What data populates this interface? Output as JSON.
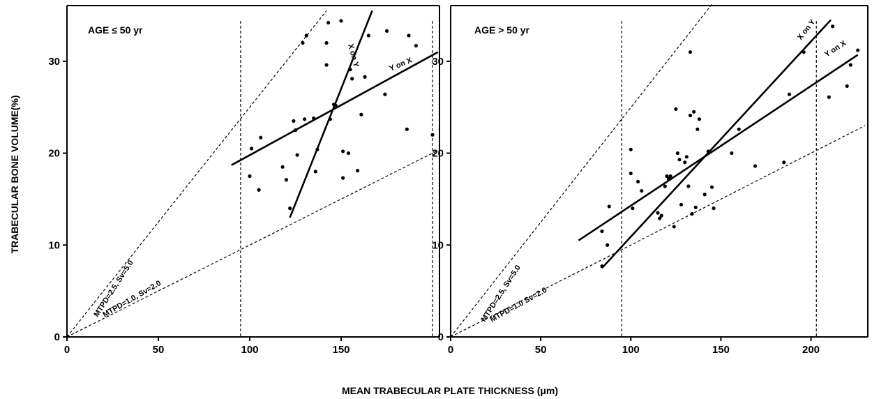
{
  "chart_data": {
    "type": "scatter",
    "xlabel": "MEAN TRABECULAR PLATE THICKNESS (μm)",
    "ylabel": "TRABECULAR BONE VOLUME(%)",
    "panels": [
      {
        "title": "AGE ≤ 50 yr",
        "xlim": [
          0,
          200
        ],
        "ylim": [
          0,
          35
        ],
        "xticks": [
          0,
          50,
          100,
          150
        ],
        "xtick_labels": [
          "0",
          "50",
          "100",
          "150"
        ],
        "yticks": [
          0,
          10,
          20,
          30
        ],
        "ytick_labels": [
          "0",
          "10",
          "20",
          "30"
        ],
        "points": [
          [
            100,
            17.5
          ],
          [
            101,
            20.5
          ],
          [
            105,
            16
          ],
          [
            106,
            21.7
          ],
          [
            118,
            18.5
          ],
          [
            120,
            17.1
          ],
          [
            122,
            14
          ],
          [
            124,
            23.5
          ],
          [
            125,
            22.5
          ],
          [
            126,
            19.8
          ],
          [
            129,
            32
          ],
          [
            130,
            23.7
          ],
          [
            131,
            32.8
          ],
          [
            135,
            23.8
          ],
          [
            136,
            18
          ],
          [
            137,
            20.4
          ],
          [
            142,
            29.6
          ],
          [
            142,
            32
          ],
          [
            143,
            34.2
          ],
          [
            144,
            23.7
          ],
          [
            146,
            25.3
          ],
          [
            147,
            25.2
          ],
          [
            150,
            34.4
          ],
          [
            151,
            20.2
          ],
          [
            151,
            17.3
          ],
          [
            154,
            20
          ],
          [
            155,
            29.1
          ],
          [
            156,
            28.1
          ],
          [
            159,
            18.1
          ],
          [
            161,
            24.2
          ],
          [
            163,
            28.3
          ],
          [
            165,
            32.8
          ],
          [
            174,
            26.4
          ],
          [
            175,
            33.3
          ],
          [
            186,
            22.6
          ],
          [
            187,
            32.8
          ],
          [
            191,
            31.7
          ],
          [
            200,
            22
          ]
        ],
        "regression_lines": [
          {
            "label": "Y on X",
            "from": [
              90,
              18.7
            ],
            "to": [
              203,
              31
            ]
          },
          {
            "label": "X on Y",
            "from": [
              122,
              13
            ],
            "to": [
              167,
              35.5
            ]
          }
        ],
        "reference_lines": [
          {
            "label": "MTPD=2.5, Sv=5.0",
            "from": [
              0,
              0
            ],
            "to": [
              142,
              35.5
            ]
          },
          {
            "label": "MTPD=1.0, Sv=2.0",
            "from": [
              0,
              0
            ],
            "to": [
              203,
              20.3
            ]
          }
        ],
        "vertical_lines_x": [
          95,
          200
        ]
      },
      {
        "title": "AGE > 50 yr",
        "xlim": [
          0,
          230
        ],
        "ylim": [
          0,
          35
        ],
        "xticks": [
          0,
          50,
          100,
          150,
          200
        ],
        "xtick_labels": [
          "0",
          "50",
          "100",
          "150",
          "200"
        ],
        "yticks": [
          0,
          10,
          20,
          30
        ],
        "ytick_labels": [
          "0",
          "10",
          "20",
          "30"
        ],
        "points": [
          [
            84,
            11.5
          ],
          [
            84,
            7.7
          ],
          [
            87,
            10
          ],
          [
            88,
            14.2
          ],
          [
            100,
            20.4
          ],
          [
            100,
            17.8
          ],
          [
            101,
            14
          ],
          [
            104,
            16.9
          ],
          [
            106,
            15.9
          ],
          [
            115,
            13.5
          ],
          [
            116,
            12.9
          ],
          [
            117,
            13.2
          ],
          [
            119,
            16.4
          ],
          [
            120,
            17.5
          ],
          [
            121,
            17.2
          ],
          [
            122,
            17.5
          ],
          [
            124,
            12
          ],
          [
            125,
            24.8
          ],
          [
            126,
            20
          ],
          [
            127,
            19.3
          ],
          [
            128,
            14.4
          ],
          [
            130,
            19
          ],
          [
            131,
            19.6
          ],
          [
            132,
            16.4
          ],
          [
            133,
            24.1
          ],
          [
            133,
            31
          ],
          [
            134,
            13.4
          ],
          [
            135,
            24.5
          ],
          [
            136,
            14.1
          ],
          [
            137,
            22.6
          ],
          [
            138,
            23.7
          ],
          [
            141,
            15.5
          ],
          [
            143,
            20.2
          ],
          [
            145,
            16.3
          ],
          [
            146,
            14
          ],
          [
            156,
            20
          ],
          [
            160,
            22.6
          ],
          [
            169,
            18.6
          ],
          [
            185,
            19
          ],
          [
            188,
            26.4
          ],
          [
            196,
            31
          ],
          [
            210,
            26.1
          ],
          [
            212,
            33.8
          ],
          [
            220,
            27.3
          ],
          [
            222,
            29.6
          ],
          [
            226,
            31.2
          ]
        ],
        "regression_lines": [
          {
            "label": "Y on X",
            "from": [
              71,
              10.5
            ],
            "to": [
              226,
              30.7
            ]
          },
          {
            "label": "X on Y",
            "from": [
              84,
              7.5
            ],
            "to": [
              211,
              34.5
            ]
          }
        ],
        "reference_lines": [
          {
            "label": "MTPD=2.5, Sv=5.0",
            "from": [
              0,
              0
            ],
            "to": [
              145,
              36.2
            ]
          },
          {
            "label": "MTPD=1.0 Sv=2.0",
            "from": [
              0,
              0
            ],
            "to": [
              230,
              23
            ]
          }
        ],
        "vertical_lines_x": [
          95,
          203
        ]
      }
    ]
  }
}
